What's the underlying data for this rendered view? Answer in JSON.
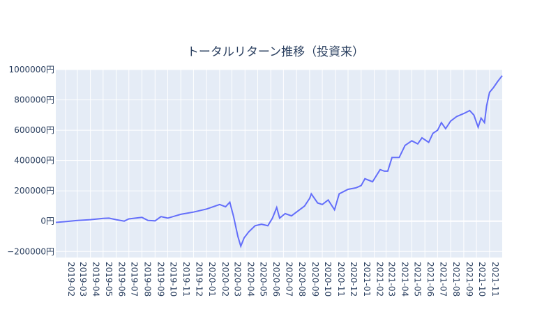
{
  "chart_data": {
    "type": "line",
    "title": "トータルリターン推移（投資来）",
    "xlabel": "",
    "ylabel": "",
    "y_ticks": [
      -200000,
      0,
      200000,
      400000,
      600000,
      800000,
      1000000
    ],
    "y_tick_labels": [
      "−200000円",
      "0円",
      "200000円",
      "400000円",
      "600000円",
      "800000円",
      "1000000円"
    ],
    "ylim": [
      -240000,
      1000000
    ],
    "x_range": [
      "2019-01-09",
      "2021-12-01"
    ],
    "x_tick_labels": [
      "2019-02",
      "2019-03",
      "2019-04",
      "2019-05",
      "2019-06",
      "2019-07",
      "2019-08",
      "2019-09",
      "2019-10",
      "2019-11",
      "2019-12",
      "2020-01",
      "2020-02",
      "2020-03",
      "2020-04",
      "2020-05",
      "2020-06",
      "2020-07",
      "2020-08",
      "2020-09",
      "2020-10",
      "2020-11",
      "2020-12",
      "2021-01",
      "2021-02",
      "2021-03",
      "2021-04",
      "2021-05",
      "2021-06",
      "2021-07",
      "2021-08",
      "2021-09",
      "2021-10",
      "2021-11"
    ],
    "grid": true,
    "line_color": "#636efa",
    "plot_bgcolor": "#e5ecf6",
    "series": [
      {
        "points": [
          [
            "2019-01-09",
            -8000
          ],
          [
            "2019-02-01",
            -3000
          ],
          [
            "2019-03-01",
            5000
          ],
          [
            "2019-04-01",
            10000
          ],
          [
            "2019-05-01",
            18000
          ],
          [
            "2019-05-15",
            20000
          ],
          [
            "2019-06-01",
            10000
          ],
          [
            "2019-06-20",
            0
          ],
          [
            "2019-07-01",
            15000
          ],
          [
            "2019-08-01",
            25000
          ],
          [
            "2019-08-15",
            5000
          ],
          [
            "2019-09-01",
            2000
          ],
          [
            "2019-09-15",
            30000
          ],
          [
            "2019-10-01",
            20000
          ],
          [
            "2019-11-01",
            45000
          ],
          [
            "2019-12-01",
            60000
          ],
          [
            "2020-01-01",
            80000
          ],
          [
            "2020-02-01",
            110000
          ],
          [
            "2020-02-15",
            95000
          ],
          [
            "2020-02-25",
            125000
          ],
          [
            "2020-03-05",
            30000
          ],
          [
            "2020-03-15",
            -100000
          ],
          [
            "2020-03-22",
            -165000
          ],
          [
            "2020-03-30",
            -110000
          ],
          [
            "2020-04-10",
            -70000
          ],
          [
            "2020-04-25",
            -30000
          ],
          [
            "2020-05-10",
            -20000
          ],
          [
            "2020-05-25",
            -30000
          ],
          [
            "2020-06-05",
            20000
          ],
          [
            "2020-06-15",
            90000
          ],
          [
            "2020-06-22",
            20000
          ],
          [
            "2020-07-05",
            50000
          ],
          [
            "2020-07-20",
            35000
          ],
          [
            "2020-08-01",
            60000
          ],
          [
            "2020-08-20",
            100000
          ],
          [
            "2020-09-01",
            150000
          ],
          [
            "2020-09-05",
            180000
          ],
          [
            "2020-09-20",
            120000
          ],
          [
            "2020-10-01",
            110000
          ],
          [
            "2020-10-15",
            140000
          ],
          [
            "2020-10-30",
            75000
          ],
          [
            "2020-11-10",
            180000
          ],
          [
            "2020-12-01",
            210000
          ],
          [
            "2020-12-20",
            220000
          ],
          [
            "2021-01-01",
            235000
          ],
          [
            "2021-01-10",
            280000
          ],
          [
            "2021-01-28",
            260000
          ],
          [
            "2021-02-15",
            340000
          ],
          [
            "2021-02-25",
            330000
          ],
          [
            "2021-03-05",
            330000
          ],
          [
            "2021-03-15",
            420000
          ],
          [
            "2021-04-01",
            420000
          ],
          [
            "2021-04-15",
            500000
          ],
          [
            "2021-05-01",
            530000
          ],
          [
            "2021-05-15",
            510000
          ],
          [
            "2021-05-25",
            550000
          ],
          [
            "2021-06-10",
            520000
          ],
          [
            "2021-06-20",
            580000
          ],
          [
            "2021-07-01",
            600000
          ],
          [
            "2021-07-10",
            650000
          ],
          [
            "2021-07-20",
            610000
          ],
          [
            "2021-08-01",
            660000
          ],
          [
            "2021-08-15",
            690000
          ],
          [
            "2021-09-01",
            710000
          ],
          [
            "2021-09-15",
            730000
          ],
          [
            "2021-09-25",
            700000
          ],
          [
            "2021-10-05",
            620000
          ],
          [
            "2021-10-12",
            680000
          ],
          [
            "2021-10-20",
            650000
          ],
          [
            "2021-10-25",
            760000
          ],
          [
            "2021-11-01",
            850000
          ],
          [
            "2021-11-10",
            880000
          ],
          [
            "2021-11-20",
            920000
          ],
          [
            "2021-12-01",
            960000
          ]
        ]
      }
    ]
  }
}
